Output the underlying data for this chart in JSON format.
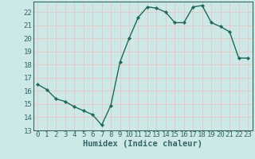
{
  "x": [
    0,
    1,
    2,
    3,
    4,
    5,
    6,
    7,
    8,
    9,
    10,
    11,
    12,
    13,
    14,
    15,
    16,
    17,
    18,
    19,
    20,
    21,
    22,
    23
  ],
  "y": [
    16.5,
    16.1,
    15.4,
    15.2,
    14.8,
    14.5,
    14.2,
    13.4,
    14.9,
    18.2,
    20.0,
    21.6,
    22.4,
    22.3,
    22.0,
    21.2,
    21.2,
    22.4,
    22.5,
    21.2,
    20.9,
    20.5,
    18.5,
    18.5
  ],
  "line_color": "#1a6b5a",
  "marker": "D",
  "marker_size": 2.2,
  "line_width": 1.0,
  "xlabel": "Humidex (Indice chaleur)",
  "xlim": [
    -0.5,
    23.5
  ],
  "ylim": [
    13,
    22.8
  ],
  "yticks": [
    13,
    14,
    15,
    16,
    17,
    18,
    19,
    20,
    21,
    22
  ],
  "xticks": [
    0,
    1,
    2,
    3,
    4,
    5,
    6,
    7,
    8,
    9,
    10,
    11,
    12,
    13,
    14,
    15,
    16,
    17,
    18,
    19,
    20,
    21,
    22,
    23
  ],
  "bg_color": "#cce9e7",
  "grid_color": "#e8c8c8",
  "axis_color": "#336666",
  "tick_label_fontsize": 6.5,
  "xlabel_fontsize": 7.5
}
